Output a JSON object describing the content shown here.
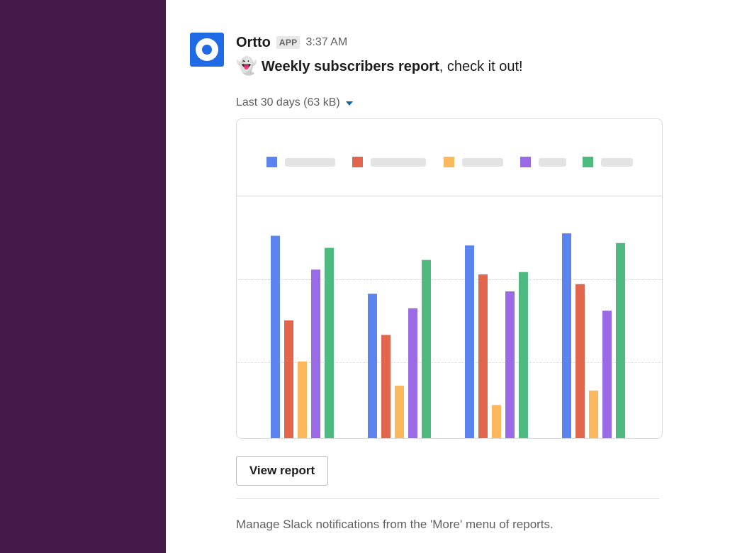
{
  "message": {
    "sender": "Ortto",
    "badge": "APP",
    "timestamp": "3:37 AM",
    "emoji": "👻",
    "text_bold": "Weekly subscribers report",
    "text_rest": ", check it out!"
  },
  "attachment": {
    "meta": "Last 30 days (63 kB)",
    "toggle_icon": "caret-down-icon"
  },
  "chart_data": {
    "type": "bar",
    "title": "",
    "xlabel": "",
    "ylabel": "",
    "legend": "top",
    "grid": true,
    "ylim": [
      0,
      100
    ],
    "categories": [
      "",
      "",
      "",
      ""
    ],
    "series": [
      {
        "color": "#5b84ee",
        "values": [
          84,
          60,
          80,
          85
        ]
      },
      {
        "color": "#e2664d",
        "values": [
          49,
          43,
          68,
          64
        ]
      },
      {
        "color": "#fdb85e",
        "values": [
          32,
          22,
          14,
          20
        ]
      },
      {
        "color": "#9b6ae6",
        "values": [
          70,
          54,
          61,
          53
        ]
      },
      {
        "color": "#4fba7f",
        "values": [
          79,
          74,
          69,
          81
        ]
      }
    ]
  },
  "actions": {
    "view_report": "View report"
  },
  "footer": {
    "note": "Manage Slack notifications from the 'More' menu of reports."
  },
  "colors": {
    "sidebar": "#451a48",
    "avatar": "#1f6be6",
    "link": "#1264a3"
  }
}
